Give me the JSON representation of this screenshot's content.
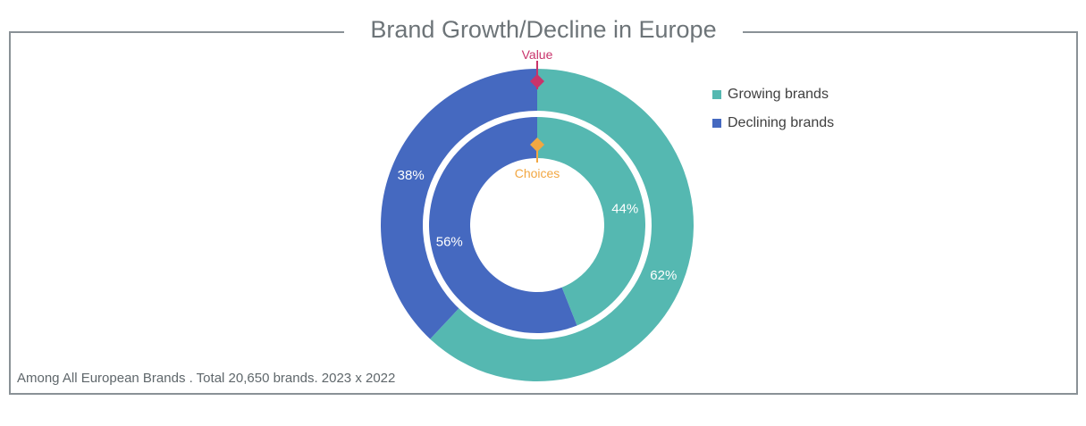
{
  "chart_data": {
    "type": "pie",
    "title": "Brand Growth/Decline in Europe",
    "footnote": "Among All European Brands . Total 20,650 brands. 2023 x 2022",
    "categories": [
      "Growing brands",
      "Declining brands"
    ],
    "series": [
      {
        "name": "Value",
        "values": [
          62,
          38
        ],
        "labels": [
          "62%",
          "38%"
        ]
      },
      {
        "name": "Choices",
        "values": [
          44,
          56
        ],
        "labels": [
          "44%",
          "56%"
        ]
      }
    ],
    "colors": {
      "growing": "#55b8b1",
      "declining": "#4569c0",
      "value_marker": "#c8336b",
      "choices_marker": "#f2a742"
    },
    "legend_position": "right"
  }
}
